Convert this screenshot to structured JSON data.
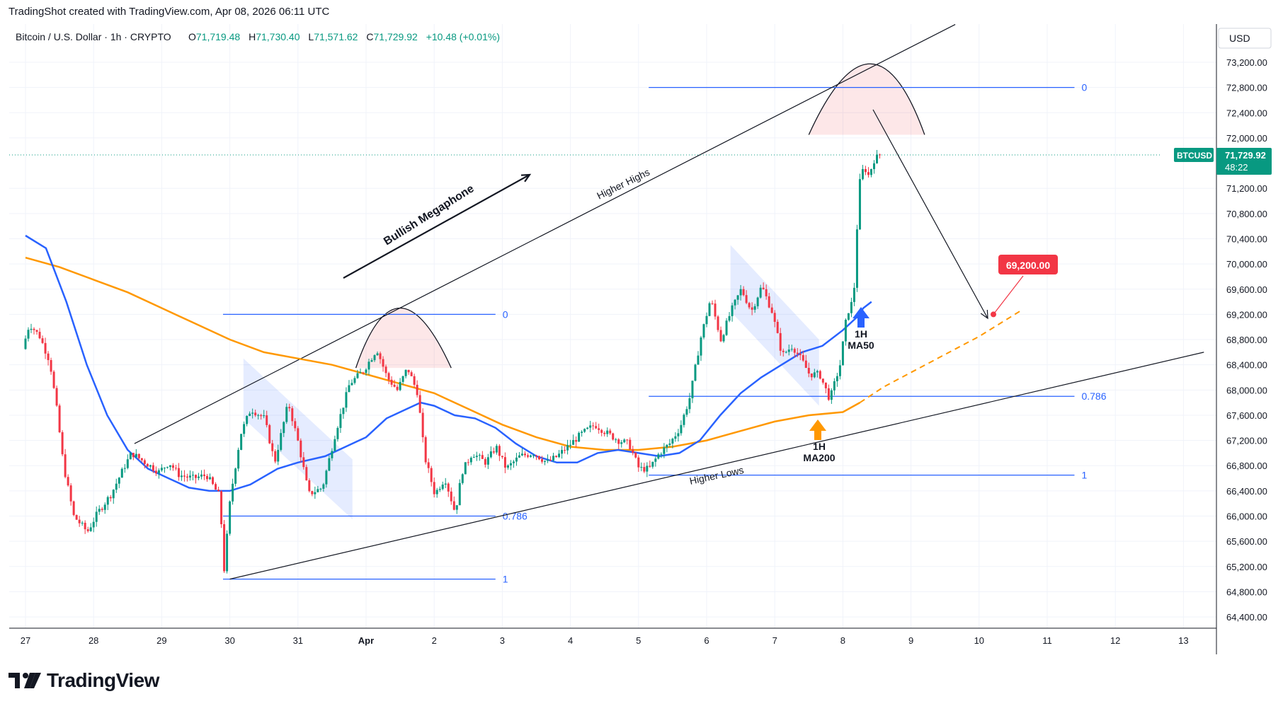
{
  "header": {
    "credit": "TradingShot created with TradingView.com, Apr 08, 2026 06:11 UTC"
  },
  "legend": {
    "symbol": "Bitcoin / U.S. Dollar · 1h · CRYPTO",
    "o_label": "O",
    "o_value": "71,719.48",
    "h_label": "H",
    "h_value": "71,730.40",
    "l_label": "L",
    "l_value": "71,571.62",
    "c_label": "C",
    "c_value": "71,729.92",
    "change": "+10.48 (+0.01%)"
  },
  "currency": "USD",
  "price_badge": {
    "ticker": "BTCUSD",
    "price": "71,729.92",
    "countdown": "48:22"
  },
  "brand": {
    "name": "TradingView"
  },
  "colors": {
    "up": "#089981",
    "down": "#f23645",
    "ma50": "#2962ff",
    "ma200": "#ff9800",
    "fib": "#2962ff"
  },
  "chart_data": {
    "type": "candlestick",
    "title": "Bitcoin / U.S. Dollar · 1h · CRYPTO",
    "y_ticks": [
      "73,200.00",
      "72,800.00",
      "72,400.00",
      "72,000.00",
      "71,200.00",
      "70,800.00",
      "70,400.00",
      "70,000.00",
      "69,600.00",
      "69,200.00",
      "68,800.00",
      "68,400.00",
      "68,000.00",
      "67,600.00",
      "67,200.00",
      "66,800.00",
      "66,400.00",
      "66,000.00",
      "65,600.00",
      "65,200.00",
      "64,800.00",
      "64,400.00"
    ],
    "y_tick_values": [
      73200,
      72800,
      72400,
      72000,
      71200,
      70800,
      70400,
      70000,
      69600,
      69200,
      68800,
      68400,
      68000,
      67600,
      67200,
      66800,
      66400,
      66000,
      65600,
      65200,
      64800,
      64400
    ],
    "x_ticks": [
      "27",
      "28",
      "29",
      "30",
      "31",
      "Apr",
      "2",
      "3",
      "4",
      "5",
      "6",
      "7",
      "8",
      "9",
      "10",
      "11",
      "12",
      "13"
    ],
    "x_tick_days": [
      0,
      1,
      2,
      3,
      4,
      5,
      6,
      7,
      8,
      9,
      10,
      11,
      12,
      13,
      14,
      15,
      16,
      17
    ],
    "ylim": [
      64200,
      73600
    ],
    "price_path": [
      [
        0.0,
        68650
      ],
      [
        0.1,
        69050
      ],
      [
        0.25,
        68850
      ],
      [
        0.4,
        68450
      ],
      [
        0.5,
        67700
      ],
      [
        0.6,
        66800
      ],
      [
        0.75,
        66000
      ],
      [
        0.95,
        65750
      ],
      [
        1.1,
        66050
      ],
      [
        1.3,
        66350
      ],
      [
        1.5,
        66800
      ],
      [
        1.6,
        67000
      ],
      [
        1.8,
        66850
      ],
      [
        2.0,
        66700
      ],
      [
        2.15,
        66850
      ],
      [
        2.3,
        66650
      ],
      [
        2.5,
        66600
      ],
      [
        2.7,
        66650
      ],
      [
        2.9,
        66300
      ],
      [
        2.95,
        65050
      ],
      [
        3.05,
        66300
      ],
      [
        3.2,
        67300
      ],
      [
        3.35,
        67700
      ],
      [
        3.55,
        67550
      ],
      [
        3.7,
        66850
      ],
      [
        3.9,
        67800
      ],
      [
        4.05,
        67150
      ],
      [
        4.2,
        66350
      ],
      [
        4.4,
        66450
      ],
      [
        4.6,
        67350
      ],
      [
        4.8,
        68100
      ],
      [
        5.0,
        68300
      ],
      [
        5.2,
        68650
      ],
      [
        5.35,
        68200
      ],
      [
        5.5,
        68000
      ],
      [
        5.65,
        68350
      ],
      [
        5.8,
        67950
      ],
      [
        5.9,
        66950
      ],
      [
        6.05,
        66350
      ],
      [
        6.2,
        66600
      ],
      [
        6.35,
        66050
      ],
      [
        6.45,
        66700
      ],
      [
        6.6,
        67000
      ],
      [
        6.8,
        66850
      ],
      [
        6.95,
        67100
      ],
      [
        7.1,
        66750
      ],
      [
        7.3,
        66950
      ],
      [
        7.5,
        67000
      ],
      [
        7.7,
        66850
      ],
      [
        7.85,
        66950
      ],
      [
        8.0,
        67100
      ],
      [
        8.2,
        67300
      ],
      [
        8.4,
        67450
      ],
      [
        8.6,
        67300
      ],
      [
        8.75,
        67200
      ],
      [
        8.9,
        67150
      ],
      [
        9.05,
        66750
      ],
      [
        9.2,
        66750
      ],
      [
        9.35,
        67000
      ],
      [
        9.5,
        67150
      ],
      [
        9.65,
        67400
      ],
      [
        9.8,
        67900
      ],
      [
        9.95,
        68800
      ],
      [
        10.1,
        69450
      ],
      [
        10.25,
        68800
      ],
      [
        10.4,
        69250
      ],
      [
        10.55,
        69600
      ],
      [
        10.7,
        69250
      ],
      [
        10.85,
        69650
      ],
      [
        11.0,
        69250
      ],
      [
        11.15,
        68550
      ],
      [
        11.3,
        68700
      ],
      [
        11.45,
        68450
      ],
      [
        11.55,
        68250
      ],
      [
        11.7,
        68250
      ],
      [
        11.85,
        67850
      ],
      [
        12.0,
        68400
      ],
      [
        12.1,
        69200
      ],
      [
        12.2,
        69450
      ],
      [
        12.28,
        71250
      ],
      [
        12.35,
        71550
      ],
      [
        12.42,
        71400
      ],
      [
        12.5,
        71650
      ],
      [
        12.58,
        71730
      ]
    ],
    "ma50": [
      [
        0,
        70450
      ],
      [
        0.3,
        70250
      ],
      [
        0.6,
        69400
      ],
      [
        0.9,
        68400
      ],
      [
        1.2,
        67600
      ],
      [
        1.5,
        67050
      ],
      [
        1.8,
        66750
      ],
      [
        2.1,
        66600
      ],
      [
        2.4,
        66450
      ],
      [
        2.7,
        66400
      ],
      [
        3.0,
        66400
      ],
      [
        3.3,
        66500
      ],
      [
        3.7,
        66750
      ],
      [
        4.0,
        66850
      ],
      [
        4.4,
        66950
      ],
      [
        4.7,
        67100
      ],
      [
        5.0,
        67250
      ],
      [
        5.3,
        67550
      ],
      [
        5.6,
        67700
      ],
      [
        5.8,
        67800
      ],
      [
        6.0,
        67750
      ],
      [
        6.3,
        67600
      ],
      [
        6.6,
        67550
      ],
      [
        6.9,
        67400
      ],
      [
        7.2,
        67150
      ],
      [
        7.5,
        66950
      ],
      [
        7.8,
        66850
      ],
      [
        8.1,
        66850
      ],
      [
        8.4,
        67000
      ],
      [
        8.7,
        67050
      ],
      [
        9.0,
        67000
      ],
      [
        9.3,
        66950
      ],
      [
        9.6,
        67000
      ],
      [
        9.9,
        67200
      ],
      [
        10.2,
        67600
      ],
      [
        10.5,
        67950
      ],
      [
        10.8,
        68200
      ],
      [
        11.1,
        68400
      ],
      [
        11.4,
        68600
      ],
      [
        11.7,
        68700
      ],
      [
        12.0,
        68950
      ],
      [
        12.2,
        69150
      ],
      [
        12.3,
        69300
      ],
      [
        12.42,
        69400
      ]
    ],
    "ma200": [
      [
        0,
        70100
      ],
      [
        0.5,
        69950
      ],
      [
        1.0,
        69750
      ],
      [
        1.5,
        69550
      ],
      [
        2.0,
        69300
      ],
      [
        2.5,
        69050
      ],
      [
        3.0,
        68800
      ],
      [
        3.5,
        68600
      ],
      [
        4.0,
        68500
      ],
      [
        4.5,
        68400
      ],
      [
        5.0,
        68250
      ],
      [
        5.5,
        68100
      ],
      [
        6.0,
        67950
      ],
      [
        6.5,
        67700
      ],
      [
        7.0,
        67450
      ],
      [
        7.5,
        67250
      ],
      [
        8.0,
        67100
      ],
      [
        8.5,
        67050
      ],
      [
        9.0,
        67050
      ],
      [
        9.5,
        67100
      ],
      [
        10.0,
        67200
      ],
      [
        10.5,
        67350
      ],
      [
        11.0,
        67500
      ],
      [
        11.5,
        67600
      ],
      [
        12.0,
        67650
      ],
      [
        12.25,
        67800
      ]
    ],
    "ma200_projection": [
      [
        12.25,
        67800
      ],
      [
        12.6,
        68050
      ],
      [
        13.3,
        68450
      ],
      [
        14.0,
        68850
      ],
      [
        14.6,
        69250
      ]
    ],
    "fib_levels": [
      {
        "label": "0",
        "value": 69200,
        "x_start": 2.9,
        "x_end": 6.9
      },
      {
        "label": "0.786",
        "value": 66000,
        "x_start": 2.9,
        "x_end": 6.9
      },
      {
        "label": "1",
        "value": 65000,
        "x_start": 2.9,
        "x_end": 6.9
      },
      {
        "label": "0",
        "value": 72800,
        "x_start": 9.15,
        "x_end": 15.4
      },
      {
        "label": "0.786",
        "value": 67900,
        "x_start": 9.15,
        "x_end": 15.4
      },
      {
        "label": "1",
        "value": 66650,
        "x_start": 9.15,
        "x_end": 15.4
      }
    ],
    "trendline_upper": [
      [
        1.6,
        67150
      ],
      [
        13.65,
        73800
      ]
    ],
    "trendline_lower": [
      [
        3.0,
        65000
      ],
      [
        17.3,
        68600
      ]
    ],
    "annotations": [
      {
        "text": "Bullish Megaphone"
      },
      {
        "text": "Higher Highs"
      },
      {
        "text": "Higher Lows"
      },
      {
        "text": "1H MA50"
      },
      {
        "text": "1H MA200"
      },
      {
        "text": "69,200.00",
        "target_price": 69200
      }
    ]
  }
}
